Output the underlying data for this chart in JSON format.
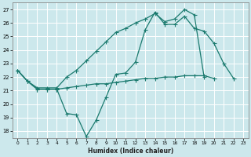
{
  "xlabel": "Humidex (Indice chaleur)",
  "xlim": [
    -0.5,
    23.5
  ],
  "ylim": [
    17.5,
    27.5
  ],
  "yticks": [
    18,
    19,
    20,
    21,
    22,
    23,
    24,
    25,
    26,
    27
  ],
  "xticks": [
    0,
    1,
    2,
    3,
    4,
    5,
    6,
    7,
    8,
    9,
    10,
    11,
    12,
    13,
    14,
    15,
    16,
    17,
    18,
    19,
    20,
    21,
    22,
    23
  ],
  "bg_color": "#cce8ec",
  "grid_color": "#b0d8de",
  "line_color": "#1a7a6e",
  "line_volatile_x": [
    0,
    1,
    2,
    3,
    4,
    5,
    6,
    7,
    8,
    9,
    10,
    11,
    12,
    13,
    14,
    15,
    16,
    17,
    18,
    19,
    20,
    21,
    22
  ],
  "line_volatile_y": [
    22.5,
    21.7,
    21.1,
    21.1,
    21.1,
    19.3,
    19.2,
    17.6,
    18.8,
    20.5,
    22.2,
    22.3,
    23.1,
    25.5,
    26.8,
    25.9,
    25.9,
    26.5,
    25.6,
    25.4,
    24.5,
    23.0,
    21.9
  ],
  "line_steep_x": [
    0,
    1,
    2,
    3,
    4,
    5,
    6,
    7,
    8,
    9,
    10,
    11,
    12,
    13,
    14,
    15,
    16,
    17,
    18,
    19,
    20,
    21,
    22
  ],
  "line_steep_y": [
    22.5,
    21.7,
    21.2,
    21.2,
    21.2,
    22.0,
    22.5,
    23.2,
    23.9,
    24.6,
    25.3,
    25.6,
    26.0,
    26.3,
    26.7,
    26.1,
    26.3,
    27.0,
    26.6,
    22.0,
    null,
    null,
    null
  ],
  "line_flat_x": [
    0,
    1,
    2,
    3,
    4,
    5,
    6,
    7,
    8,
    9,
    10,
    11,
    12,
    13,
    14,
    15,
    16,
    17,
    18,
    19,
    20,
    21,
    22
  ],
  "line_flat_y": [
    22.5,
    21.7,
    21.1,
    21.1,
    21.1,
    21.2,
    21.3,
    21.4,
    21.5,
    21.5,
    21.6,
    21.7,
    21.8,
    21.9,
    21.9,
    22.0,
    22.0,
    22.1,
    22.1,
    22.1,
    21.9,
    null,
    null
  ]
}
